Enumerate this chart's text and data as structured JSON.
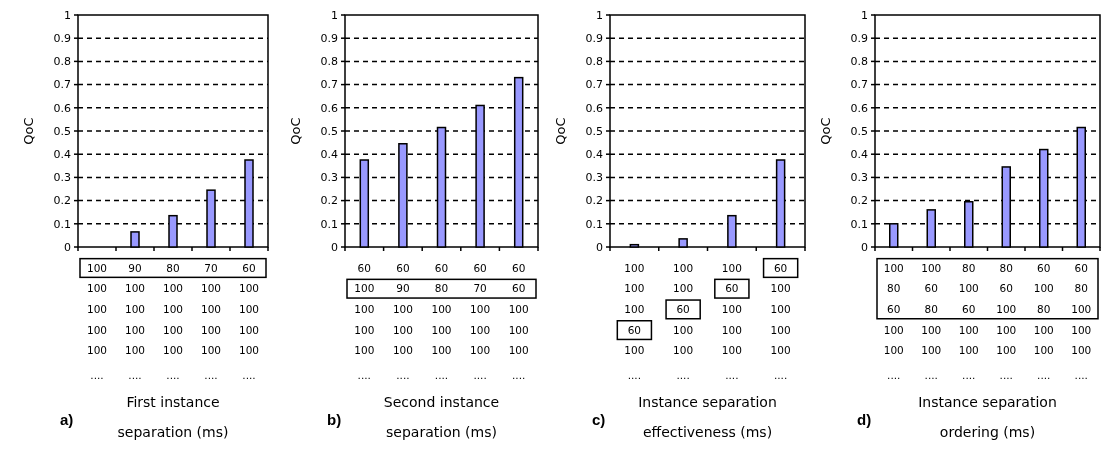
{
  "chart_data": [
    {
      "type": "bar",
      "ylabel": "QoC",
      "xlabel": "First instance\nseparation  (ms)",
      "annotations": [
        "a)"
      ],
      "categories": [
        "100\n100\n100\n100\n100\n....",
        "90\n100\n100\n100\n100\n....",
        "80\n100\n100\n100\n100\n....",
        "70\n100\n100\n100\n100\n....",
        "60\n100\n100\n100\n100\n...."
      ],
      "values": [
        0,
        0.065,
        0.135,
        0.245,
        0.375
      ],
      "color": "#9999ff",
      "ylim": [
        0,
        1
      ],
      "yticks": [
        0,
        0.1,
        0.2,
        0.3,
        0.4,
        0.5,
        0.6,
        0.7,
        0.8,
        0.9,
        1
      ],
      "grid": "y",
      "line_style": "dashed"
    },
    {
      "type": "bar",
      "ylabel": "QoC",
      "xlabel": "Second instance\nseparation  (ms)",
      "annotations": [
        "b)"
      ],
      "categories": [
        "60\n100\n100\n100\n100\n....",
        "60\n90\n100\n100\n100\n....",
        "60\n80\n100\n100\n100\n....",
        "60\n70\n100\n100\n100\n....",
        "60\n60\n100\n100\n100\n...."
      ],
      "values": [
        0.375,
        0.445,
        0.515,
        0.61,
        0.73
      ],
      "color": "#9999ff",
      "ylim": [
        0,
        1
      ],
      "yticks": [
        0,
        0.1,
        0.2,
        0.3,
        0.4,
        0.5,
        0.6,
        0.7,
        0.8,
        0.9,
        1
      ],
      "grid": "y",
      "line_style": "dashed"
    },
    {
      "type": "bar",
      "ylabel": "QoC",
      "xlabel": "Instance separation\neffectiveness (ms)",
      "annotations": [
        "c)"
      ],
      "categories": [
        "100\n100\n100\n60\n100\n....",
        "100\n100\n60\n100\n100\n....",
        "100\n60\n100\n100\n100\n....",
        "60\n100\n100\n100\n100\n...."
      ],
      "values": [
        0.01,
        0.035,
        0.135,
        0.375
      ],
      "color": "#9999ff",
      "ylim": [
        0,
        1
      ],
      "yticks": [
        0,
        0.1,
        0.2,
        0.3,
        0.4,
        0.5,
        0.6,
        0.7,
        0.8,
        0.9,
        1
      ],
      "grid": "y",
      "line_style": "dashed"
    },
    {
      "type": "bar",
      "ylabel": "QoC",
      "xlabel": "Instance separation\nordering (ms)",
      "annotations": [
        "d)"
      ],
      "categories": [
        "100\n80\n60\n100\n100\n....",
        "100\n60\n80\n100\n100\n....",
        "80\n100\n60\n100\n100\n....",
        "80\n60\n100\n100\n100\n....",
        "60\n100\n80\n100\n100\n....",
        "60\n80\n100\n100\n100\n...."
      ],
      "values": [
        0.1,
        0.16,
        0.195,
        0.345,
        0.42,
        0.515
      ],
      "color": "#9999ff",
      "ylim": [
        0,
        1
      ],
      "yticks": [
        0,
        0.1,
        0.2,
        0.3,
        0.4,
        0.5,
        0.6,
        0.7,
        0.8,
        0.9,
        1
      ],
      "grid": "y",
      "line_style": "dashed"
    }
  ]
}
